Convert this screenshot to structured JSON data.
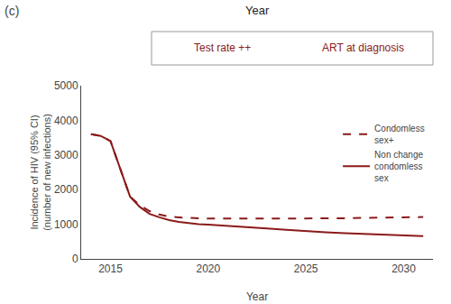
{
  "chart_data": {
    "type": "line",
    "title": "(c)",
    "subtitle": "Year",
    "annotations": [
      "Test rate ++",
      "ART at diagnosis"
    ],
    "xlabel": "Year",
    "ylabel": "Incidence of HIV (95% CI)\n(number of new infections)",
    "color": "#8B1A1A",
    "x": [
      2014.0,
      2014.5,
      2015.0,
      2015.5,
      2016.0,
      2016.5,
      2017.0,
      2017.5,
      2018.0,
      2018.5,
      2019.0,
      2019.5,
      2020.0,
      2021.0,
      2022.0,
      2023.0,
      2024.0,
      2025.0,
      2026.0,
      2027.0,
      2028.0,
      2029.0,
      2030.0,
      2031.0
    ],
    "series": [
      {
        "name": "Condomless\nsex+",
        "line_style": "dashed",
        "values": [
          3600,
          3550,
          3400,
          2600,
          1800,
          1550,
          1380,
          1280,
          1220,
          1200,
          1180,
          1170,
          1165,
          1160,
          1160,
          1165,
          1165,
          1165,
          1170,
          1175,
          1185,
          1195,
          1205,
          1210
        ]
      },
      {
        "name": "Non change\ncondomless\nsex",
        "line_style": "solid",
        "values": [
          3600,
          3550,
          3400,
          2600,
          1800,
          1500,
          1300,
          1200,
          1120,
          1070,
          1030,
          1005,
          990,
          960,
          920,
          880,
          840,
          800,
          770,
          740,
          715,
          690,
          670,
          655
        ]
      }
    ],
    "xlim": [
      2013.5,
      2031.5
    ],
    "ylim": [
      0,
      5000
    ],
    "xticks": [
      2015,
      2020,
      2025,
      2030
    ],
    "yticks": [
      0,
      1000,
      2000,
      3000,
      4000,
      5000
    ],
    "grid": false,
    "legend": "right"
  }
}
